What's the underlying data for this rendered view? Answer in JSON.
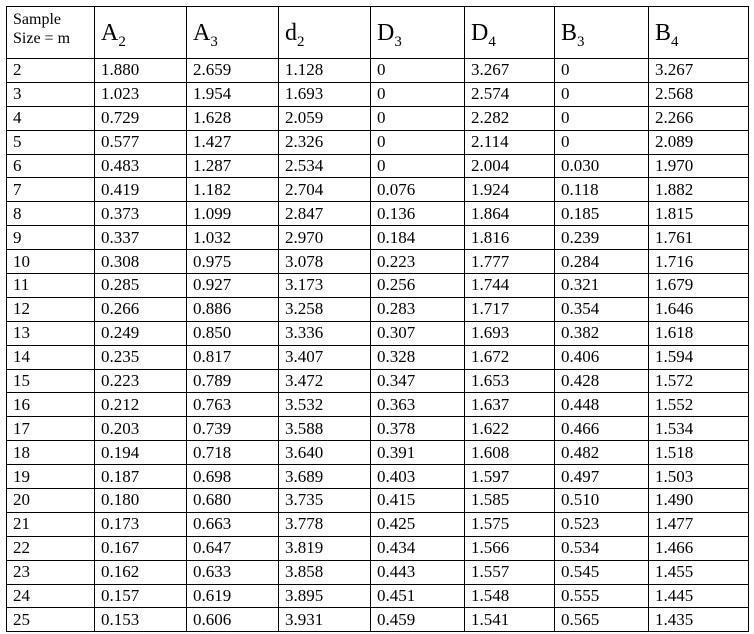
{
  "table": {
    "size_header_line1": "Sample",
    "size_header_line2": "Size = m",
    "columns": [
      {
        "base": "A",
        "sub": "2"
      },
      {
        "base": "A",
        "sub": "3"
      },
      {
        "base": "d",
        "sub": "2"
      },
      {
        "base": "D",
        "sub": "3"
      },
      {
        "base": "D",
        "sub": "4"
      },
      {
        "base": "B",
        "sub": "3"
      },
      {
        "base": "B",
        "sub": "4"
      }
    ],
    "rows": [
      [
        "2",
        "1.880",
        "2.659",
        "1.128",
        "0",
        "3.267",
        "0",
        "3.267"
      ],
      [
        "3",
        "1.023",
        "1.954",
        "1.693",
        "0",
        "2.574",
        "0",
        "2.568"
      ],
      [
        "4",
        "0.729",
        "1.628",
        "2.059",
        "0",
        "2.282",
        "0",
        "2.266"
      ],
      [
        "5",
        "0.577",
        "1.427",
        "2.326",
        "0",
        "2.114",
        "0",
        "2.089"
      ],
      [
        "6",
        "0.483",
        "1.287",
        "2.534",
        "0",
        "2.004",
        "0.030",
        "1.970"
      ],
      [
        "7",
        "0.419",
        "1.182",
        "2.704",
        "0.076",
        "1.924",
        "0.118",
        "1.882"
      ],
      [
        "8",
        "0.373",
        "1.099",
        "2.847",
        "0.136",
        "1.864",
        "0.185",
        "1.815"
      ],
      [
        "9",
        "0.337",
        "1.032",
        "2.970",
        "0.184",
        "1.816",
        "0.239",
        "1.761"
      ],
      [
        "10",
        "0.308",
        "0.975",
        "3.078",
        "0.223",
        "1.777",
        "0.284",
        "1.716"
      ],
      [
        "11",
        "0.285",
        "0.927",
        "3.173",
        "0.256",
        "1.744",
        "0.321",
        "1.679"
      ],
      [
        "12",
        "0.266",
        "0.886",
        "3.258",
        "0.283",
        "1.717",
        "0.354",
        "1.646"
      ],
      [
        "13",
        "0.249",
        "0.850",
        "3.336",
        "0.307",
        "1.693",
        "0.382",
        "1.618"
      ],
      [
        "14",
        "0.235",
        "0.817",
        "3.407",
        "0.328",
        "1.672",
        "0.406",
        "1.594"
      ],
      [
        "15",
        "0.223",
        "0.789",
        "3.472",
        "0.347",
        "1.653",
        "0.428",
        "1.572"
      ],
      [
        "16",
        "0.212",
        "0.763",
        "3.532",
        "0.363",
        "1.637",
        "0.448",
        "1.552"
      ],
      [
        "17",
        "0.203",
        "0.739",
        "3.588",
        "0.378",
        "1.622",
        "0.466",
        "1.534"
      ],
      [
        "18",
        "0.194",
        "0.718",
        "3.640",
        "0.391",
        "1.608",
        "0.482",
        "1.518"
      ],
      [
        "19",
        "0.187",
        "0.698",
        "3.689",
        "0.403",
        "1.597",
        "0.497",
        "1.503"
      ],
      [
        "20",
        "0.180",
        "0.680",
        "3.735",
        "0.415",
        "1.585",
        "0.510",
        "1.490"
      ],
      [
        "21",
        "0.173",
        "0.663",
        "3.778",
        "0.425",
        "1.575",
        "0.523",
        "1.477"
      ],
      [
        "22",
        "0.167",
        "0.647",
        "3.819",
        "0.434",
        "1.566",
        "0.534",
        "1.466"
      ],
      [
        "23",
        "0.162",
        "0.633",
        "3.858",
        "0.443",
        "1.557",
        "0.545",
        "1.455"
      ],
      [
        "24",
        "0.157",
        "0.619",
        "3.895",
        "0.451",
        "1.548",
        "0.555",
        "1.445"
      ],
      [
        "25",
        "0.153",
        "0.606",
        "3.931",
        "0.459",
        "1.541",
        "0.565",
        "1.435"
      ]
    ]
  }
}
